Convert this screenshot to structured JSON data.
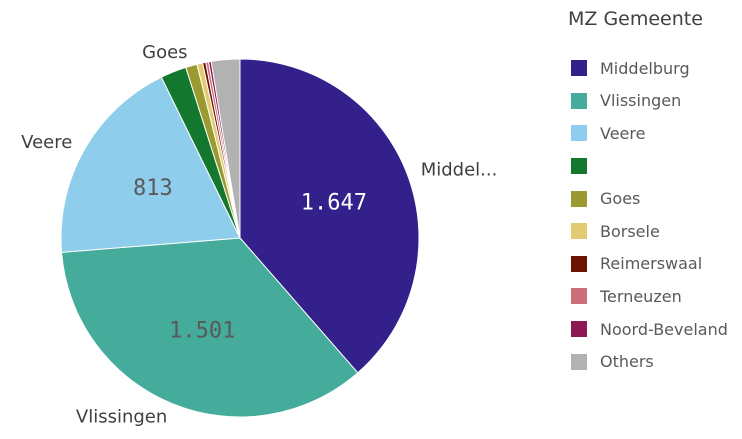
{
  "chart_data": {
    "type": "pie",
    "legend_title": "MZ Gemeente",
    "legend_position": "right",
    "slices": [
      {
        "label": "Middelburg",
        "outside_label": "Middel...",
        "value": 1647,
        "display_value": "1.647",
        "color": "#33208a"
      },
      {
        "label": "Vlissingen",
        "outside_label": "Vlissingen",
        "value": 1501,
        "display_value": "1.501",
        "color": "#45ab9b"
      },
      {
        "label": "Veere",
        "outside_label": "Veere",
        "value": 813,
        "display_value": "813",
        "color": "#8fcdec"
      },
      {
        "label": "",
        "outside_label": "",
        "value": 100,
        "display_value": "",
        "color": "#13782d"
      },
      {
        "label": "Goes",
        "outside_label": "Goes",
        "value": 44,
        "display_value": "",
        "color": "#9b9a31"
      },
      {
        "label": "Borsele",
        "outside_label": "",
        "value": 22,
        "display_value": "",
        "color": "#e2cb72"
      },
      {
        "label": "Reimerswaal",
        "outside_label": "",
        "value": 12,
        "display_value": "",
        "color": "#6c1202"
      },
      {
        "label": "Terneuzen",
        "outside_label": "",
        "value": 11,
        "display_value": "",
        "color": "#cd6f7b"
      },
      {
        "label": "Noord-Beveland",
        "outside_label": "",
        "value": 10,
        "display_value": "",
        "color": "#8d1852"
      },
      {
        "label": "Others",
        "outside_label": "",
        "value": 110,
        "display_value": "",
        "color": "#b2b2b2"
      }
    ]
  }
}
